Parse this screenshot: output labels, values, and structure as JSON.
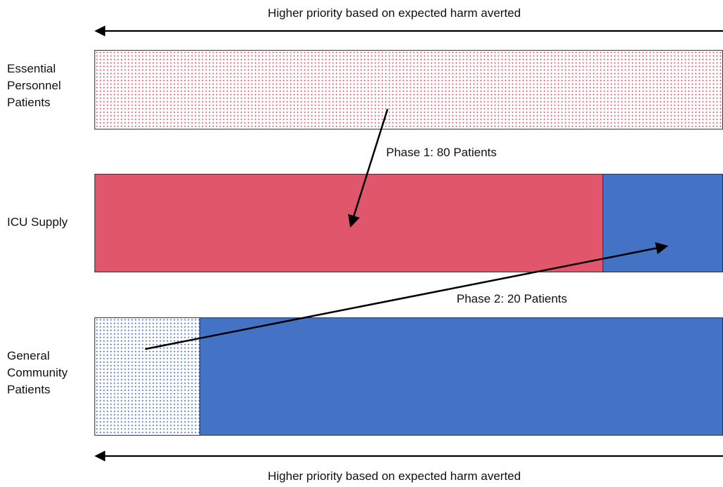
{
  "top_caption": "Higher priority based on expected harm averted",
  "bottom_caption": "Higher priority based on expected harm averted",
  "rows": {
    "essential": {
      "label": "Essential\nPersonnel\nPatients"
    },
    "icu": {
      "label": "ICU Supply"
    },
    "general": {
      "label": "General\nCommunity\nPatients"
    }
  },
  "phases": {
    "phase1": "Phase 1: 80 Patients",
    "phase2": "Phase 2: 20 Patients"
  },
  "colors": {
    "red_fill": "#E0566B",
    "blue_fill": "#4472C4",
    "red_dot": "#E0566B",
    "blue_dot": "#4472C4",
    "line": "#000000"
  }
}
